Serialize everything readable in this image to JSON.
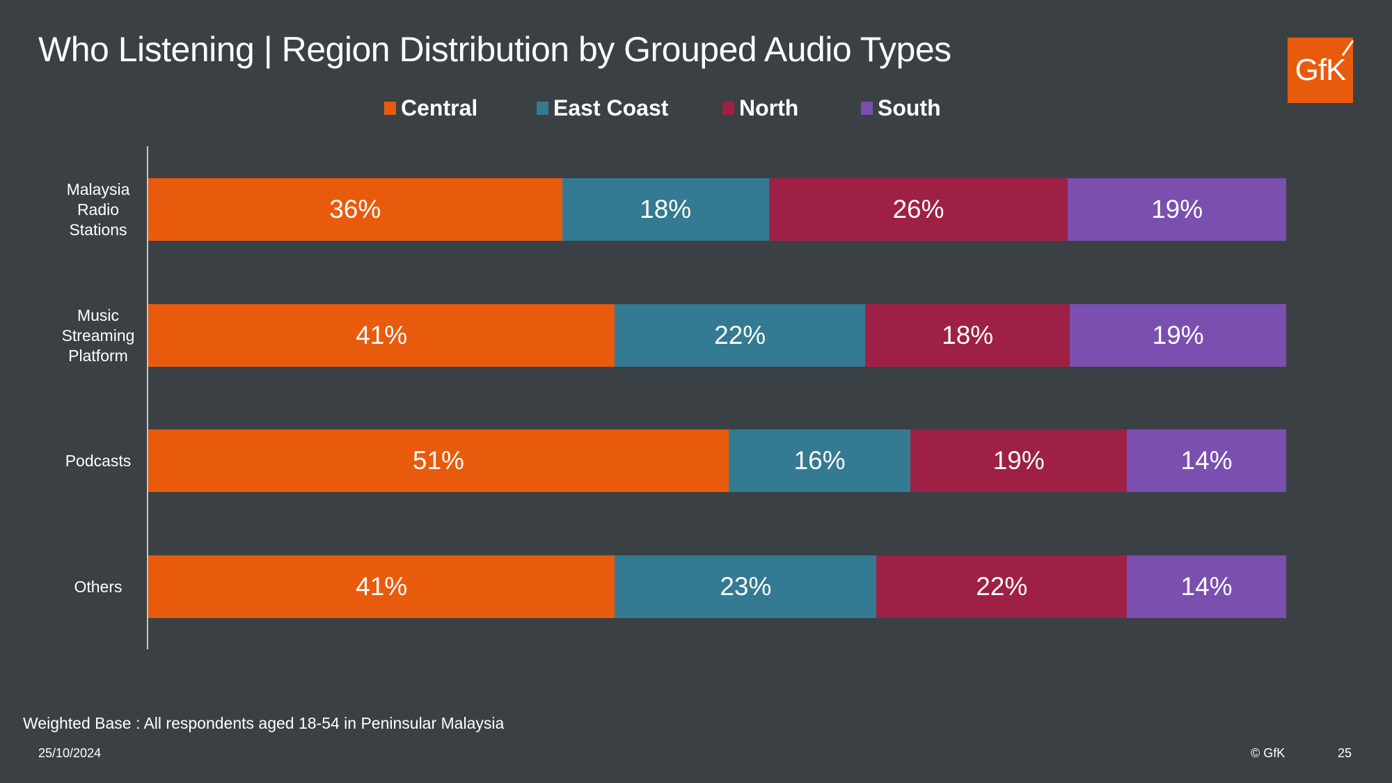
{
  "title": "Who Listening | Region Distribution by Grouped Audio Types",
  "logo": {
    "text": "GfK",
    "color": "#e95b0c"
  },
  "footer": {
    "base_note": "Weighted Base : All respondents aged 18-54 in Peninsular Malaysia",
    "date": "25/10/2024",
    "copyright": "© GfK",
    "page_number": "25"
  },
  "chart_data": {
    "type": "bar",
    "orientation": "horizontal",
    "stacked": "100%",
    "title": "Who Listening | Region Distribution by Grouped Audio Types",
    "xlabel": "",
    "ylabel": "",
    "legend_position": "top",
    "grid": false,
    "categories": [
      "Malaysia Radio Stations",
      "Music Streaming Platform",
      "Podcasts",
      "Others"
    ],
    "category_lines": [
      [
        "Malaysia",
        "Radio",
        "Stations"
      ],
      [
        "Music",
        "Streaming",
        "Platform"
      ],
      [
        "Podcasts"
      ],
      [
        "Others"
      ]
    ],
    "series": [
      {
        "name": "Central",
        "color": "#e95b0c",
        "values": [
          36,
          41,
          51,
          41
        ],
        "labels": [
          "36%",
          "41%",
          "51%",
          "41%"
        ]
      },
      {
        "name": "East Coast",
        "color": "#347a92",
        "values": [
          18,
          22,
          16,
          23
        ],
        "labels": [
          "18%",
          "22%",
          "16%",
          "23%"
        ]
      },
      {
        "name": "North",
        "color": "#9e2045",
        "values": [
          26,
          18,
          19,
          22
        ],
        "labels": [
          "26%",
          "18%",
          "19%",
          "22%"
        ]
      },
      {
        "name": "South",
        "color": "#7b4fb0",
        "values": [
          19,
          19,
          14,
          14
        ],
        "labels": [
          "19%",
          "19%",
          "14%",
          "14%"
        ]
      }
    ]
  }
}
